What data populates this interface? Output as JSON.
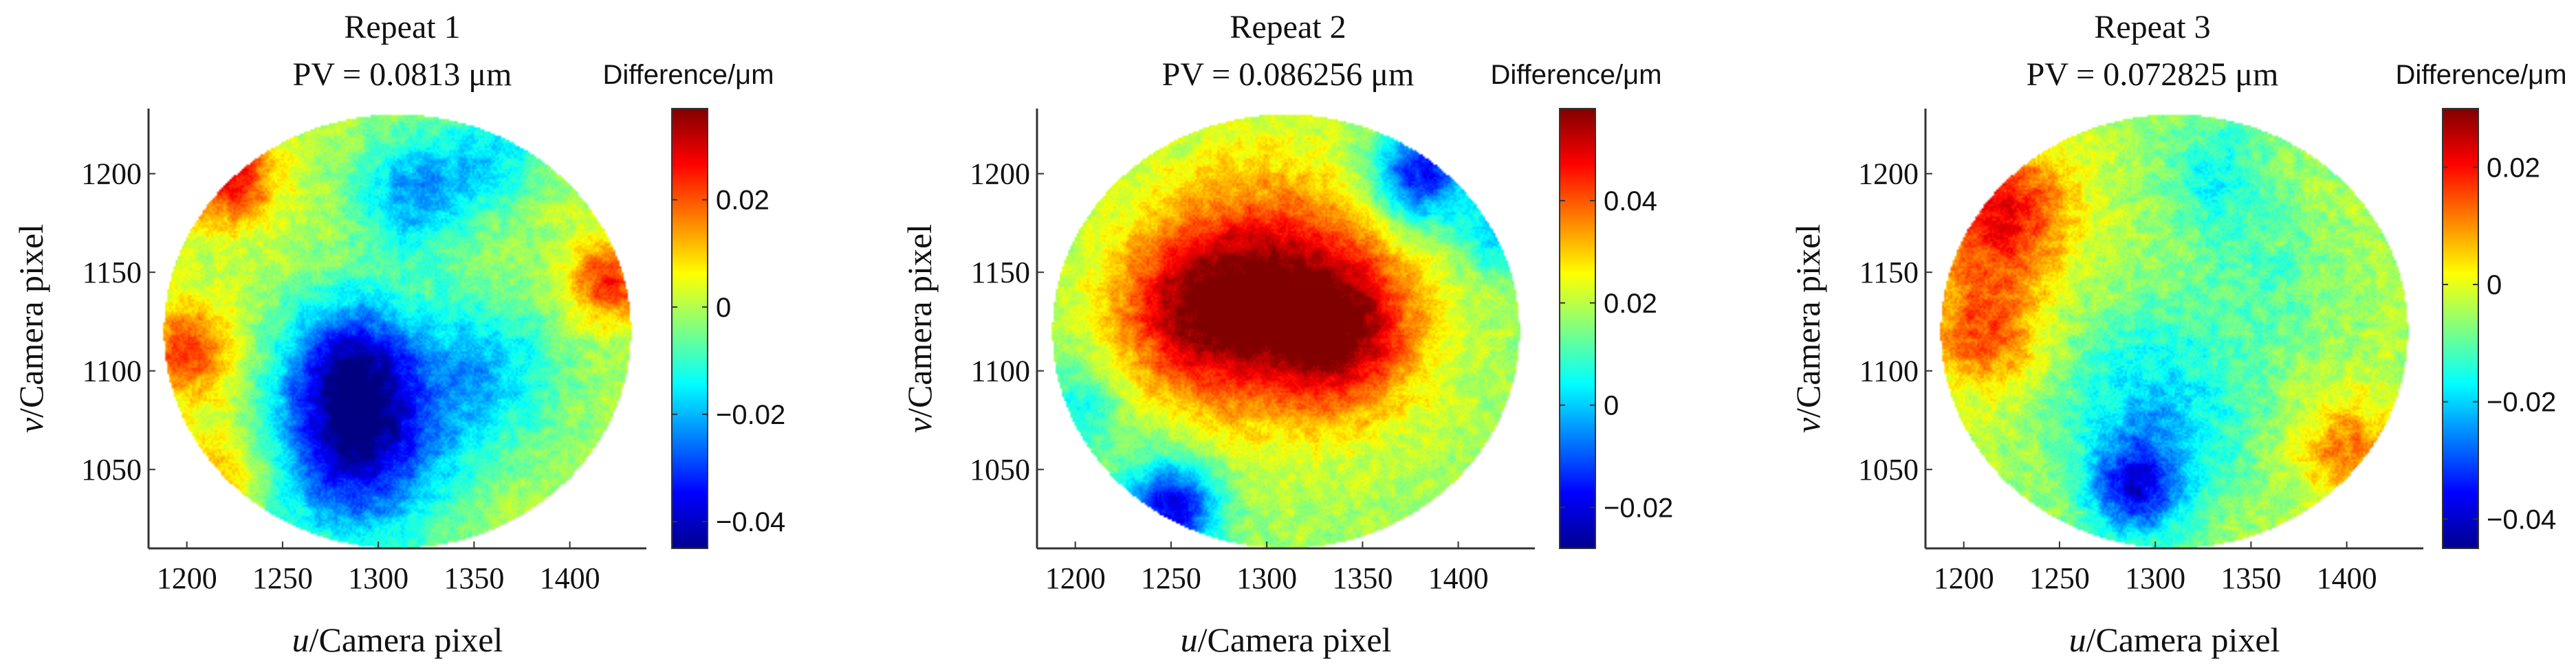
{
  "figure": {
    "panels": [
      {
        "title": "Repeat 1",
        "pv_text": "PV = 0.0813 μm",
        "colorbar_label": "Difference/μm"
      },
      {
        "title": "Repeat 2",
        "pv_text": "PV = 0.086256 μm",
        "colorbar_label": "Difference/μm"
      },
      {
        "title": "Repeat 3",
        "pv_text": "PV = 0.072825 μm",
        "colorbar_label": "Difference/μm"
      }
    ]
  },
  "chart_data": [
    {
      "type": "heatmap",
      "title": "Repeat 1",
      "subtitle": "PV = 0.0813 μm",
      "xlabel_italic": "u",
      "xlabel_rest": "/Camera pixel",
      "ylabel_italic": "v",
      "ylabel_rest": "/Camera pixel",
      "xlim": [
        1180,
        1440
      ],
      "ylim": [
        1010,
        1233
      ],
      "xticks": [
        1200,
        1250,
        1300,
        1350,
        1400
      ],
      "xtick_labels": [
        "1200",
        "1250",
        "1300",
        "1350",
        "1400"
      ],
      "yticks": [
        1050,
        1100,
        1150,
        1200
      ],
      "ytick_labels": [
        "1050",
        "1100",
        "1150",
        "1200"
      ],
      "colorbar": {
        "label": "Difference/μm",
        "range": [
          -0.045,
          0.037
        ],
        "ticks": [
          -0.04,
          -0.02,
          0,
          0.02
        ],
        "tick_labels": [
          "−0.04",
          "−0.02",
          "0",
          "0.02"
        ]
      },
      "aperture": {
        "center_u": 1310,
        "center_v": 1120,
        "radius_u": 122,
        "radius_v": 110
      },
      "features": [
        {
          "u": 1290,
          "v": 1060,
          "value": -0.038,
          "spread": 45
        },
        {
          "u": 1285,
          "v": 1105,
          "value": -0.03,
          "spread": 35
        },
        {
          "u": 1355,
          "v": 1100,
          "value": -0.018,
          "spread": 40
        },
        {
          "u": 1320,
          "v": 1190,
          "value": -0.022,
          "spread": 30
        },
        {
          "u": 1360,
          "v": 1210,
          "value": -0.015,
          "spread": 25
        },
        {
          "u": 1220,
          "v": 1200,
          "value": 0.03,
          "spread": 25
        },
        {
          "u": 1200,
          "v": 1110,
          "value": 0.022,
          "spread": 25
        },
        {
          "u": 1420,
          "v": 1145,
          "value": 0.025,
          "spread": 20
        },
        {
          "u": 1220,
          "v": 1050,
          "value": 0.012,
          "spread": 25
        }
      ],
      "base_value": 0.0,
      "noise": 0.007
    },
    {
      "type": "heatmap",
      "title": "Repeat 2",
      "subtitle": "PV = 0.086256 μm",
      "xlabel_italic": "u",
      "xlabel_rest": "/Camera pixel",
      "ylabel_italic": "v",
      "ylabel_rest": "/Camera pixel",
      "xlim": [
        1180,
        1440
      ],
      "ylim": [
        1010,
        1233
      ],
      "xticks": [
        1200,
        1250,
        1300,
        1350,
        1400
      ],
      "xtick_labels": [
        "1200",
        "1250",
        "1300",
        "1350",
        "1400"
      ],
      "yticks": [
        1050,
        1100,
        1150,
        1200
      ],
      "ytick_labels": [
        "1050",
        "1100",
        "1150",
        "1200"
      ],
      "colorbar": {
        "label": "Difference/μm",
        "range": [
          -0.028,
          0.058
        ],
        "ticks": [
          -0.02,
          0,
          0.02,
          0.04
        ],
        "tick_labels": [
          "−0.02",
          "0",
          "0.02",
          "0.04"
        ]
      },
      "aperture": {
        "center_u": 1310,
        "center_v": 1120,
        "radius_u": 122,
        "radius_v": 110
      },
      "features": [
        {
          "u": 1300,
          "v": 1140,
          "value": 0.05,
          "spread": 60
        },
        {
          "u": 1340,
          "v": 1120,
          "value": 0.045,
          "spread": 40
        },
        {
          "u": 1260,
          "v": 1130,
          "value": 0.04,
          "spread": 40
        },
        {
          "u": 1380,
          "v": 1200,
          "value": -0.018,
          "spread": 25
        },
        {
          "u": 1420,
          "v": 1170,
          "value": 0.0,
          "spread": 20
        },
        {
          "u": 1250,
          "v": 1030,
          "value": -0.02,
          "spread": 25
        },
        {
          "u": 1200,
          "v": 1080,
          "value": 0.005,
          "spread": 25
        }
      ],
      "base_value": 0.018,
      "noise": 0.007
    },
    {
      "type": "heatmap",
      "title": "Repeat 3",
      "subtitle": "PV = 0.072825 μm",
      "xlabel_italic": "u",
      "xlabel_rest": "/Camera pixel",
      "ylabel_italic": "v",
      "ylabel_rest": "/Camera pixel",
      "xlim": [
        1180,
        1440
      ],
      "ylim": [
        1010,
        1233
      ],
      "xticks": [
        1200,
        1250,
        1300,
        1350,
        1400
      ],
      "xtick_labels": [
        "1200",
        "1250",
        "1300",
        "1350",
        "1400"
      ],
      "yticks": [
        1050,
        1100,
        1150,
        1200
      ],
      "ytick_labels": [
        "1050",
        "1100",
        "1150",
        "1200"
      ],
      "colorbar": {
        "label": "Difference/μm",
        "range": [
          -0.045,
          0.03
        ],
        "ticks": [
          -0.04,
          -0.02,
          0,
          0.02
        ],
        "tick_labels": [
          "−0.04",
          "−0.02",
          "0",
          "0.02"
        ]
      },
      "aperture": {
        "center_u": 1310,
        "center_v": 1120,
        "radius_u": 122,
        "radius_v": 110
      },
      "features": [
        {
          "u": 1220,
          "v": 1180,
          "value": 0.022,
          "spread": 35
        },
        {
          "u": 1210,
          "v": 1120,
          "value": 0.015,
          "spread": 30
        },
        {
          "u": 1300,
          "v": 1080,
          "value": -0.02,
          "spread": 50
        },
        {
          "u": 1290,
          "v": 1040,
          "value": -0.03,
          "spread": 25
        },
        {
          "u": 1360,
          "v": 1150,
          "value": -0.01,
          "spread": 40
        },
        {
          "u": 1330,
          "v": 1200,
          "value": -0.015,
          "spread": 30
        },
        {
          "u": 1400,
          "v": 1060,
          "value": 0.012,
          "spread": 25
        }
      ],
      "base_value": -0.004,
      "noise": 0.007
    }
  ]
}
